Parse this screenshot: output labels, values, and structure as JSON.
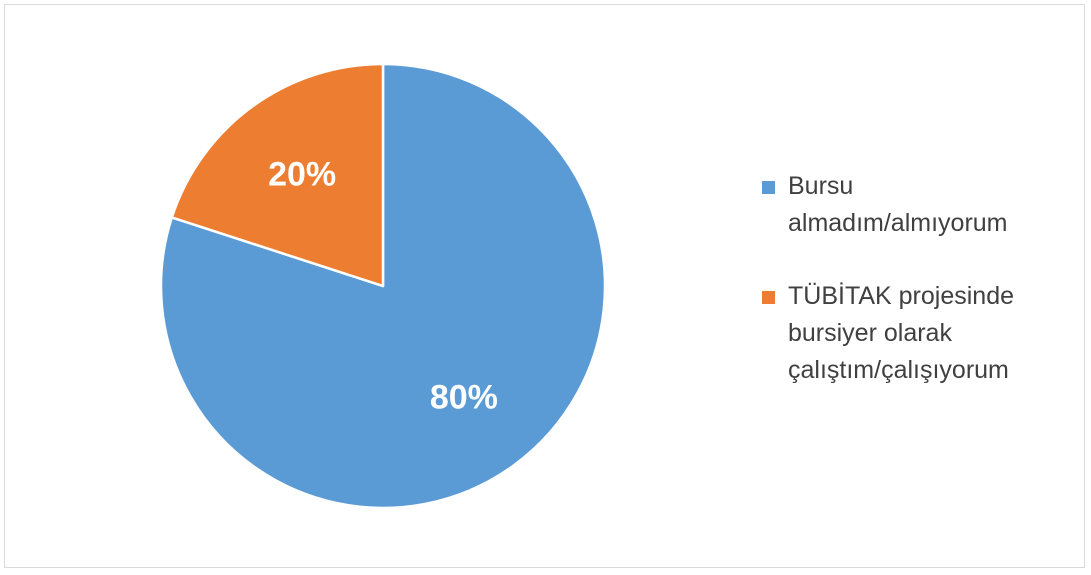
{
  "chart_data": {
    "type": "pie",
    "title": "",
    "slices": [
      {
        "label": "Bursu\nalmadım/almıyorum",
        "value": 80,
        "display": "80%",
        "color": "#5b9bd5"
      },
      {
        "label": "TÜBİTAK projesinde\nbursiyer olarak\nçalıştım/çalışıyorum",
        "value": 20,
        "display": "20%",
        "color": "#ed7d31"
      }
    ],
    "start_angle_deg": 0,
    "direction": "clockwise",
    "legend_position": "right",
    "slice_border_color": "#ffffff"
  }
}
